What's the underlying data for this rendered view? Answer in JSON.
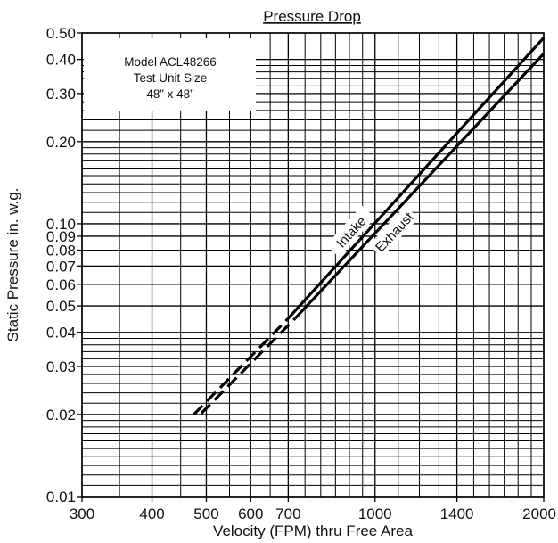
{
  "chart_data": {
    "type": "line",
    "title": "Pressure Drop",
    "xlabel": "Velocity (FPM) thru Free Area",
    "ylabel": "Static Pressure in. w.g.",
    "x_scale": "log",
    "y_scale": "log",
    "xlim": [
      300,
      2000
    ],
    "ylim": [
      0.01,
      0.5
    ],
    "grid": true,
    "x_ticks": [
      300,
      400,
      500,
      600,
      700,
      1000,
      1400,
      2000
    ],
    "x_tick_labels": [
      "300",
      "400",
      "500",
      "600",
      "700",
      "1000",
      "1400",
      "2000"
    ],
    "x_minor_gridlines": [
      350,
      450,
      550,
      650,
      750,
      800,
      850,
      900,
      950,
      1100,
      1200,
      1300,
      1500,
      1600,
      1700,
      1800,
      1900
    ],
    "y_ticks": [
      0.01,
      0.02,
      0.03,
      0.04,
      0.05,
      0.06,
      0.07,
      0.08,
      0.09,
      0.1,
      0.2,
      0.3,
      0.4,
      0.5
    ],
    "y_tick_labels": [
      "0.01",
      "0.02",
      "0.03",
      "0.04",
      "0.05",
      "0.06",
      "0.07",
      "0.08",
      "0.09",
      "0.10",
      "0.20",
      "0.30",
      "0.40",
      "0.50"
    ],
    "y_minor_gridlines": [
      0.011,
      0.012,
      0.013,
      0.014,
      0.015,
      0.016,
      0.017,
      0.018,
      0.019,
      0.022,
      0.024,
      0.026,
      0.028,
      0.032,
      0.034,
      0.036,
      0.038,
      0.11,
      0.12,
      0.13,
      0.14,
      0.15,
      0.16,
      0.17,
      0.18,
      0.19,
      0.22,
      0.24,
      0.26,
      0.28,
      0.32,
      0.34,
      0.36,
      0.38
    ],
    "note": [
      "Model ACL48266",
      "Test Unit Size",
      "48” x 48”"
    ],
    "series": [
      {
        "name": "Intake",
        "dashed_x": [
          475,
          700
        ],
        "dashed_y": [
          0.02,
          0.045
        ],
        "solid_x": [
          700,
          2000
        ],
        "solid_y": [
          0.045,
          0.48
        ]
      },
      {
        "name": "Exhaust",
        "dashed_x": [
          490,
          720
        ],
        "dashed_y": [
          0.0202,
          0.045
        ],
        "solid_x": [
          720,
          2000
        ],
        "solid_y": [
          0.045,
          0.42
        ]
      }
    ]
  }
}
